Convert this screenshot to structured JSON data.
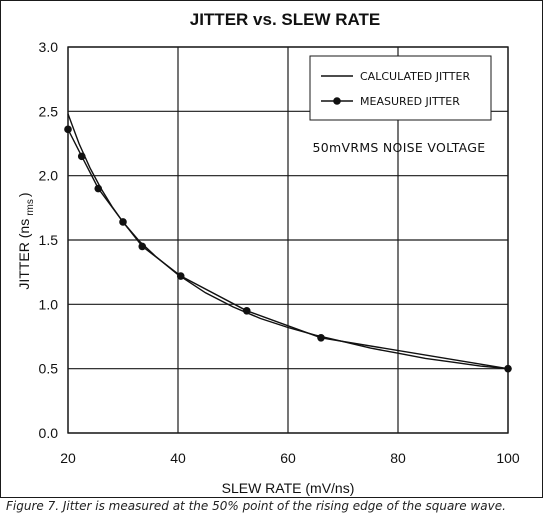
{
  "caption": "Figure 7. Jitter is measured at the 50% point of the rising edge of the square wave.",
  "chart_data": {
    "type": "line",
    "title": "JITTER vs. SLEW RATE",
    "xlabel": "SLEW RATE (mV/ns)",
    "ylabel": {
      "main": "JITTER (ns",
      "sub": "rms",
      "close": ")"
    },
    "xlim": [
      20,
      100
    ],
    "ylim": [
      0.0,
      3.0
    ],
    "xticks": [
      "20",
      "40",
      "60",
      "80",
      "100"
    ],
    "yticks": [
      "0.0",
      "0.5",
      "1.0",
      "1.5",
      "2.0",
      "2.5",
      "3.0"
    ],
    "grid": true,
    "legend_position": "top-right",
    "annotation": "50mVRMS NOISE VOLTAGE",
    "series": [
      {
        "name": "CALCULATED JITTER",
        "marker": "none",
        "x": [
          20,
          22,
          24,
          26,
          28,
          30,
          33,
          36,
          40,
          45,
          50,
          55,
          60,
          65,
          70,
          75,
          80,
          85,
          90,
          95,
          100
        ],
        "y": [
          2.48,
          2.25,
          2.06,
          1.9,
          1.76,
          1.64,
          1.49,
          1.37,
          1.23,
          1.09,
          0.98,
          0.89,
          0.82,
          0.76,
          0.71,
          0.66,
          0.62,
          0.58,
          0.55,
          0.52,
          0.5
        ]
      },
      {
        "name": "MEASURED JITTER",
        "marker": "circle",
        "x": [
          20,
          22.5,
          25.5,
          30,
          33.5,
          40.5,
          52.5,
          66,
          100
        ],
        "y": [
          2.36,
          2.15,
          1.9,
          1.64,
          1.45,
          1.22,
          0.95,
          0.74,
          0.5
        ]
      }
    ],
    "colors": {
      "line": "#111111",
      "grid": "#1a1a1a",
      "frame": "#1a1a1a"
    }
  }
}
